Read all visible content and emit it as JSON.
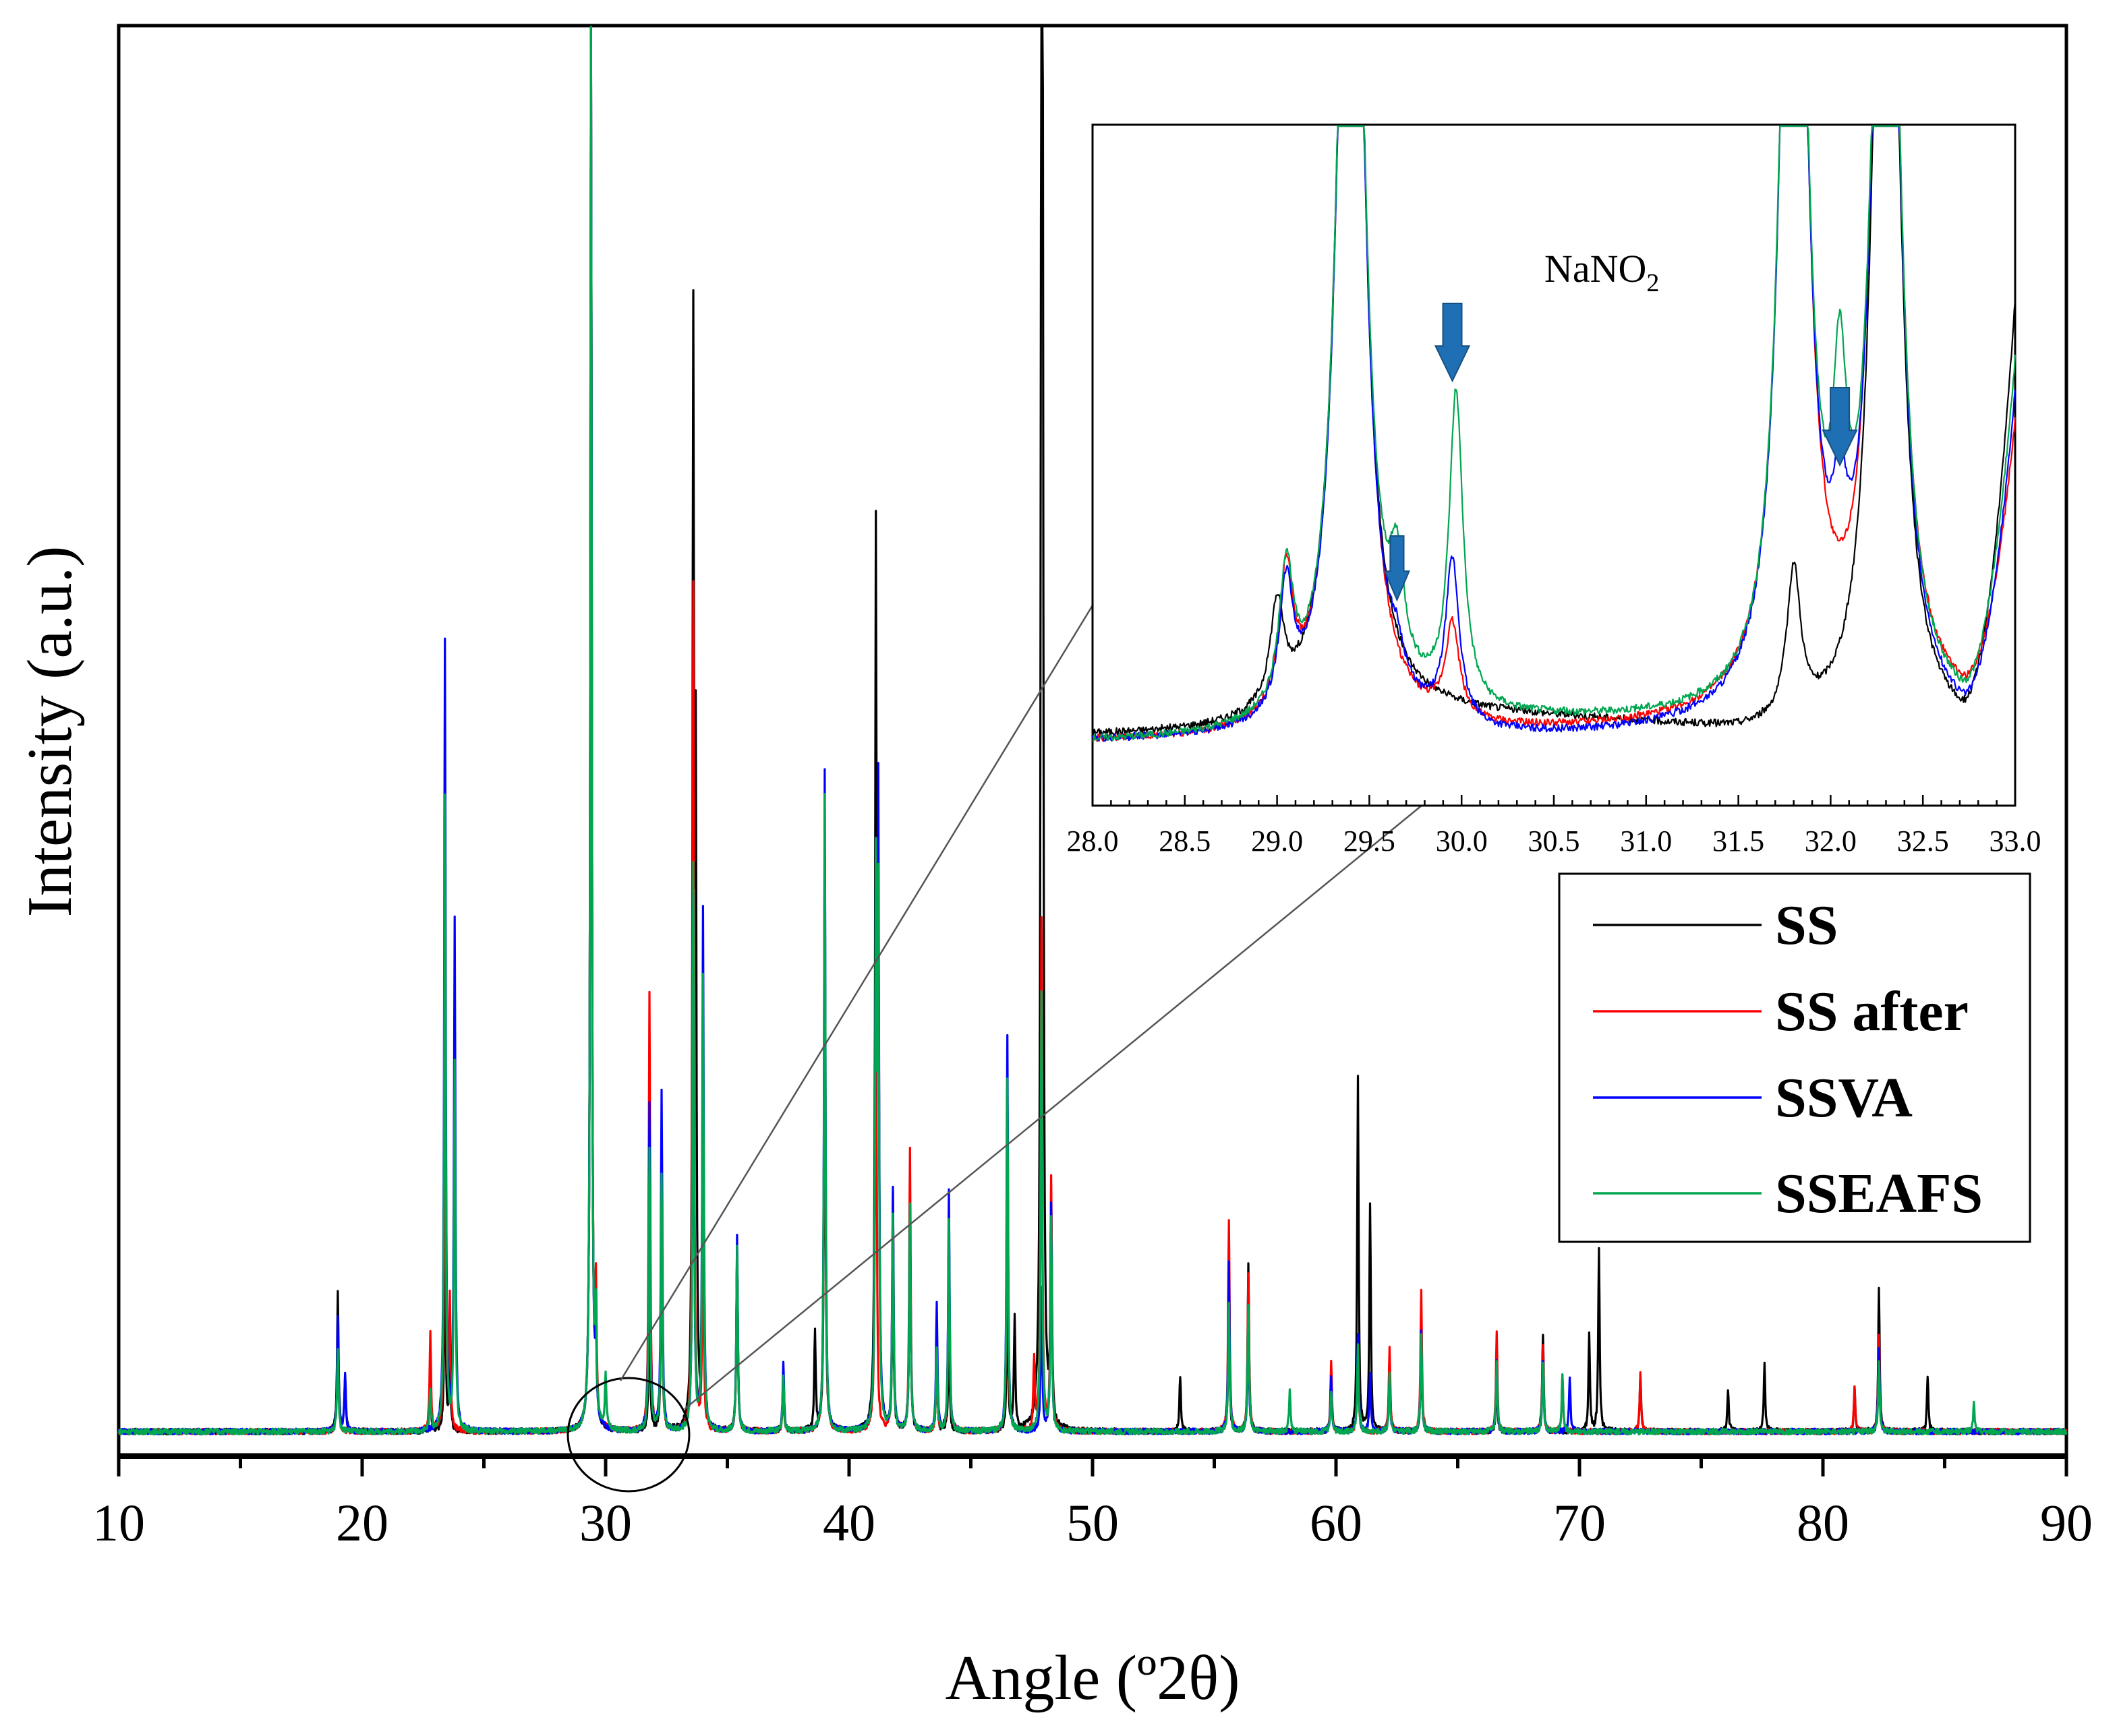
{
  "chart_data": {
    "type": "line",
    "title": "",
    "xlabel": "Angle (º2θ)",
    "ylabel": "Intensity (a.u.)",
    "xlim": [
      10,
      90
    ],
    "x_ticks": [
      "10",
      "20",
      "30",
      "40",
      "50",
      "60",
      "70",
      "80",
      "90"
    ],
    "y_ticks_labeled": false,
    "legend_position": "right",
    "series": [
      {
        "name": "SS",
        "color": "#000000",
        "peaks": [
          [
            19.0,
            0.1
          ],
          [
            19.3,
            0.04
          ],
          [
            22.8,
            0.03
          ],
          [
            23.4,
            0.14
          ],
          [
            23.6,
            0.05
          ],
          [
            29.4,
            1.0
          ],
          [
            29.6,
            0.06
          ],
          [
            31.8,
            0.1
          ],
          [
            32.3,
            0.15
          ],
          [
            33.6,
            0.76
          ],
          [
            33.7,
            0.44
          ],
          [
            34.0,
            0.15
          ],
          [
            35.4,
            0.13
          ],
          [
            37.3,
            0.04
          ],
          [
            38.6,
            0.07
          ],
          [
            39.0,
            0.35
          ],
          [
            41.1,
            0.61
          ],
          [
            41.2,
            0.36
          ],
          [
            41.8,
            0.12
          ],
          [
            42.5,
            0.16
          ],
          [
            43.6,
            0.05
          ],
          [
            44.1,
            0.07
          ],
          [
            46.5,
            0.1
          ],
          [
            46.8,
            0.08
          ],
          [
            47.9,
            0.93
          ],
          [
            47.95,
            0.77
          ],
          [
            48.3,
            0.16
          ],
          [
            53.6,
            0.04
          ],
          [
            55.6,
            0.09
          ],
          [
            56.4,
            0.12
          ],
          [
            59.8,
            0.04
          ],
          [
            60.9,
            0.25
          ],
          [
            61.4,
            0.16
          ],
          [
            62.2,
            0.05
          ],
          [
            63.5,
            0.06
          ],
          [
            66.6,
            0.04
          ],
          [
            68.5,
            0.07
          ],
          [
            70.4,
            0.07
          ],
          [
            70.8,
            0.13
          ],
          [
            72.5,
            0.04
          ],
          [
            76.1,
            0.03
          ],
          [
            77.6,
            0.05
          ],
          [
            81.3,
            0.03
          ],
          [
            82.3,
            0.1
          ],
          [
            84.3,
            0.04
          ]
        ]
      },
      {
        "name": "SS after",
        "color": "#ff0000",
        "peaks": [
          [
            19.0,
            0.07
          ],
          [
            22.8,
            0.07
          ],
          [
            23.4,
            0.3
          ],
          [
            23.6,
            0.09
          ],
          [
            29.4,
            1.0
          ],
          [
            29.6,
            0.09
          ],
          [
            31.8,
            0.31
          ],
          [
            32.3,
            0.18
          ],
          [
            33.6,
            0.6
          ],
          [
            34.0,
            0.15
          ],
          [
            35.4,
            0.13
          ],
          [
            37.3,
            0.03
          ],
          [
            39.0,
            0.4
          ],
          [
            41.1,
            0.39
          ],
          [
            41.8,
            0.17
          ],
          [
            42.5,
            0.2
          ],
          [
            43.6,
            0.05
          ],
          [
            44.1,
            0.15
          ],
          [
            46.5,
            0.22
          ],
          [
            47.6,
            0.05
          ],
          [
            47.9,
            0.36
          ],
          [
            48.3,
            0.18
          ],
          [
            55.6,
            0.15
          ],
          [
            56.4,
            0.11
          ],
          [
            59.8,
            0.05
          ],
          [
            60.9,
            0.06
          ],
          [
            62.2,
            0.06
          ],
          [
            63.5,
            0.1
          ],
          [
            66.6,
            0.07
          ],
          [
            68.5,
            0.06
          ],
          [
            69.3,
            0.04
          ],
          [
            72.5,
            0.04
          ],
          [
            81.3,
            0.03
          ],
          [
            82.3,
            0.07
          ]
        ]
      },
      {
        "name": "SSVA",
        "color": "#0000ff",
        "peaks": [
          [
            19.0,
            0.08
          ],
          [
            19.3,
            0.04
          ],
          [
            23.4,
            0.56
          ],
          [
            23.8,
            0.36
          ],
          [
            29.4,
            1.0
          ],
          [
            29.6,
            0.05
          ],
          [
            31.8,
            0.23
          ],
          [
            32.3,
            0.24
          ],
          [
            33.6,
            0.38
          ],
          [
            34.0,
            0.37
          ],
          [
            35.4,
            0.14
          ],
          [
            37.3,
            0.05
          ],
          [
            39.0,
            0.47
          ],
          [
            41.1,
            0.37
          ],
          [
            41.2,
            0.43
          ],
          [
            41.8,
            0.17
          ],
          [
            42.5,
            0.16
          ],
          [
            43.6,
            0.09
          ],
          [
            44.1,
            0.17
          ],
          [
            46.5,
            0.28
          ],
          [
            47.9,
            0.1
          ],
          [
            48.3,
            0.16
          ],
          [
            55.6,
            0.12
          ],
          [
            56.4,
            0.08
          ],
          [
            59.8,
            0.04
          ],
          [
            60.9,
            0.07
          ],
          [
            61.4,
            0.04
          ],
          [
            62.2,
            0.04
          ],
          [
            63.5,
            0.07
          ],
          [
            66.6,
            0.05
          ],
          [
            68.5,
            0.05
          ],
          [
            69.6,
            0.04
          ],
          [
            82.3,
            0.06
          ]
        ]
      },
      {
        "name": "SSEAFS",
        "color": "#00a650",
        "peaks": [
          [
            19.0,
            0.06
          ],
          [
            22.8,
            0.03
          ],
          [
            23.4,
            0.45
          ],
          [
            23.8,
            0.26
          ],
          [
            29.4,
            1.0
          ],
          [
            29.6,
            0.07
          ],
          [
            30.0,
            0.04
          ],
          [
            31.8,
            0.2
          ],
          [
            32.3,
            0.18
          ],
          [
            33.6,
            0.4
          ],
          [
            34.0,
            0.32
          ],
          [
            35.4,
            0.13
          ],
          [
            37.3,
            0.04
          ],
          [
            39.0,
            0.45
          ],
          [
            41.1,
            0.38
          ],
          [
            41.2,
            0.36
          ],
          [
            41.8,
            0.15
          ],
          [
            42.5,
            0.16
          ],
          [
            43.6,
            0.06
          ],
          [
            44.1,
            0.15
          ],
          [
            46.5,
            0.25
          ],
          [
            47.9,
            0.31
          ],
          [
            48.3,
            0.15
          ],
          [
            55.6,
            0.09
          ],
          [
            56.4,
            0.09
          ],
          [
            58.1,
            0.03
          ],
          [
            59.8,
            0.03
          ],
          [
            60.9,
            0.06
          ],
          [
            62.2,
            0.04
          ],
          [
            63.5,
            0.07
          ],
          [
            66.6,
            0.05
          ],
          [
            68.5,
            0.05
          ],
          [
            69.3,
            0.04
          ],
          [
            82.3,
            0.05
          ],
          [
            86.2,
            0.02
          ]
        ]
      }
    ],
    "inset": {
      "xlim": [
        28.0,
        33.0
      ],
      "x_ticks": [
        "28.0",
        "28.5",
        "29.0",
        "29.5",
        "30.0",
        "30.5",
        "31.0",
        "31.5",
        "32.0",
        "32.5",
        "33.0"
      ],
      "annotation": "NaNO",
      "annotation_subscript": "2",
      "arrows_at_x": [
        29.65,
        29.95,
        32.05
      ],
      "arrow_color": "#1f6fb5",
      "series": [
        {
          "name": "SS",
          "color": "#000000",
          "peaks": [
            [
              29.0,
              0.16
            ],
            [
              29.4,
              2.0
            ],
            [
              31.8,
              0.24
            ],
            [
              32.3,
              2.0
            ]
          ],
          "tail": [
            [
              28.0,
              0.02
            ],
            [
              29.8,
              0.05
            ],
            [
              31.5,
              0.02
            ],
            [
              32.7,
              0.02
            ],
            [
              33.0,
              0.7
            ]
          ]
        },
        {
          "name": "SS after",
          "color": "#ff0000",
          "peaks": [
            [
              29.05,
              0.22
            ],
            [
              29.4,
              2.0
            ],
            [
              29.95,
              0.15
            ],
            [
              31.8,
              2.0
            ],
            [
              32.3,
              2.0
            ]
          ],
          "tail": [
            [
              28.0,
              0.01
            ],
            [
              29.8,
              0.02
            ],
            [
              31.5,
              0.04
            ],
            [
              32.7,
              0.05
            ],
            [
              33.0,
              0.5
            ]
          ]
        },
        {
          "name": "SSVA",
          "color": "#0000ff",
          "peaks": [
            [
              29.05,
              0.2
            ],
            [
              29.4,
              2.0
            ],
            [
              29.65,
              0.05
            ],
            [
              29.95,
              0.26
            ],
            [
              31.8,
              2.0
            ],
            [
              32.05,
              0.18
            ],
            [
              32.3,
              2.0
            ]
          ],
          "tail": [
            [
              28.0,
              0.01
            ],
            [
              29.8,
              0.01
            ],
            [
              31.5,
              0.03
            ],
            [
              32.7,
              0.02
            ],
            [
              33.0,
              0.55
            ]
          ]
        },
        {
          "name": "SSEAFS",
          "color": "#00a650",
          "peaks": [
            [
              29.05,
              0.22
            ],
            [
              29.4,
              2.0
            ],
            [
              29.65,
              0.16
            ],
            [
              29.97,
              0.5
            ],
            [
              31.8,
              2.0
            ],
            [
              32.05,
              0.37
            ],
            [
              32.3,
              2.0
            ]
          ],
          "tail": [
            [
              28.0,
              0.01
            ],
            [
              29.8,
              0.04
            ],
            [
              31.5,
              0.04
            ],
            [
              32.7,
              0.04
            ],
            [
              33.0,
              0.6
            ]
          ]
        }
      ]
    }
  }
}
